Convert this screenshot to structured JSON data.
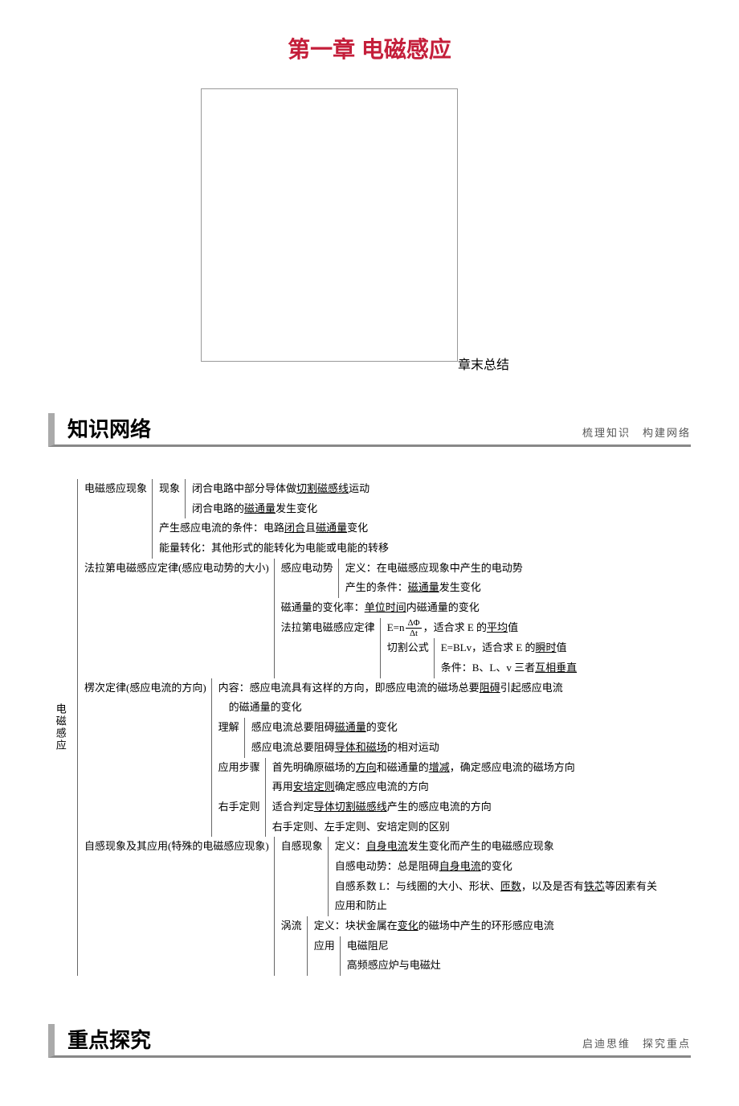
{
  "colors": {
    "title_color": "#c41e3a",
    "border_color": "#888888",
    "text_color": "#000000",
    "bg_color": "#ffffff"
  },
  "typography": {
    "title_fontsize": 28,
    "section_title_fontsize": 26,
    "body_fontsize": 13,
    "subtitle_fontsize": 13
  },
  "chapter_title": "第一章  电磁感应",
  "chapter_summary_label": "章末总结",
  "sections": {
    "network": {
      "title": "知识网络",
      "subtitle": "梳理知识　构建网络"
    },
    "focus": {
      "title": "重点探究",
      "subtitle": "启迪思维　探究重点"
    }
  },
  "root_label": "电磁感应",
  "outline": {
    "phenomenon": {
      "label": "电磁感应现象",
      "xianxiang_label": "现象",
      "xianxiang": {
        "a": "闭合电路中部分导体做",
        "a_u": "切割磁感线",
        "a_tail": "运动",
        "b": "闭合电路的",
        "b_u": "磁通量",
        "b_tail": "发生变化"
      },
      "condition": {
        "text": "产生感应电流的条件：电路",
        "u1": "闭合",
        "mid": "且",
        "u2": "磁通量",
        "tail": "变化"
      },
      "energy": "能量转化：其他形式的能转化为电能或电能的转移"
    },
    "faraday": {
      "label": "法拉第电磁感应定律(感应电动势的大小)",
      "emf_label": "感应电动势",
      "emf": {
        "def": "定义：在电磁感应现象中产生的电动势",
        "cond": "产生的条件：",
        "cond_u": "磁通量",
        "cond_tail": "发生变化"
      },
      "rate": {
        "text": "磁通量的变化率：",
        "u": "单位时间",
        "tail": "内磁通量的变化"
      },
      "law_label": "法拉第电磁感应定律",
      "law": {
        "formula1_pre": "E=n",
        "formula1_num": "ΔΦ",
        "formula1_den": "Δt",
        "formula1_mid": "，适合求 E 的",
        "formula1_u": "平均",
        "formula1_tail": "值",
        "cut_label": "切割公式",
        "formula2_pre": "E=BLv，适合求 E 的",
        "formula2_u": "瞬时",
        "formula2_tail": "值",
        "cond": "条件：B、L、v 三者",
        "cond_u": "互相垂直"
      }
    },
    "lenz": {
      "label": "楞次定律(感应电流的方向)",
      "content": {
        "pre": "内容：感应电流具有这样的方向，即感应电流的磁场总要",
        "u": "阻碍",
        "mid": "引起感应电流",
        "line2": "的磁通量的变化"
      },
      "understand_label": "理解",
      "understand": {
        "a_pre": "感应电流总要阻碍",
        "a_u": "磁通量",
        "a_tail": "的变化",
        "b_pre": "感应电流总要阻碍",
        "b_u": "导体和磁场",
        "b_tail": "的相对运动"
      },
      "steps_label": "应用步骤",
      "steps": {
        "a_pre": "首先明确原磁场的",
        "a_u1": "方向",
        "a_mid": "和磁通量的",
        "a_u2": "增减",
        "a_tail": "，确定感应电流的磁场方向",
        "b_pre": "再用",
        "b_u": "安培定则",
        "b_tail": "确定感应电流的方向"
      },
      "right_label": "右手定则",
      "right": {
        "a_pre": "适合判定",
        "a_u": "导体切割磁感线",
        "a_tail": "产生的感应电流的方向",
        "b": "右手定则、左手定则、安培定则的区别"
      }
    },
    "self": {
      "label": "自感现象及其应用(特殊的电磁感应现象)",
      "self_label": "自感现象",
      "self_items": {
        "def_pre": "定义：",
        "def_u": "自身电流",
        "def_tail": "发生变化而产生的电磁感应现象",
        "emf_pre": "自感电动势：总是阻碍",
        "emf_u": "自身电流",
        "emf_tail": "的变化",
        "coef_pre": "自感系数 L：与线圈的大小、形状、",
        "coef_u1": "匝数",
        "coef_mid": "，以及是否有",
        "coef_u2": "铁芯",
        "coef_tail": "等因素有关",
        "app": "应用和防止"
      },
      "eddy_label": "涡流",
      "eddy": {
        "def_pre": "定义：块状金属在",
        "def_u": "变化",
        "def_tail": "的磁场中产生的环形感应电流",
        "app_label": "应用",
        "app_a": "电磁阻尼",
        "app_b": "高频感应炉与电磁灶"
      }
    }
  }
}
